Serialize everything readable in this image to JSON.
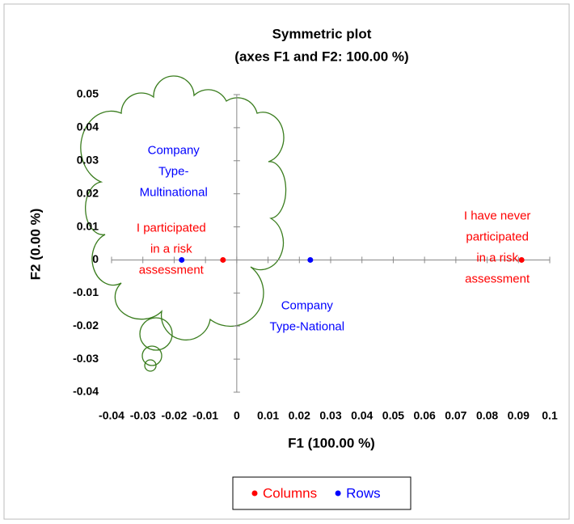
{
  "chart_data": {
    "type": "scatter",
    "title": "Symmetric plot",
    "subtitle": "(axes F1 and F2: 100.00 %)",
    "x_label": "F1 (100.00 %)",
    "y_label": "F2 (0.00 %)",
    "xlim": [
      -0.04,
      0.1
    ],
    "ylim": [
      -0.04,
      0.05
    ],
    "xticks": [
      -0.04,
      -0.03,
      -0.02,
      -0.01,
      0,
      0.01,
      0.02,
      0.03,
      0.04,
      0.05,
      0.06,
      0.07,
      0.08,
      0.09,
      0.1
    ],
    "yticks": [
      0.05,
      0.04,
      0.03,
      0.02,
      0.01,
      0,
      -0.01,
      -0.02,
      -0.03,
      -0.04
    ],
    "series": [
      {
        "name": "Columns",
        "color": "#ff0000",
        "x": [
          -0.0044,
          0.091
        ],
        "values": [
          0,
          0
        ],
        "labels": [
          [
            "I participated",
            "in a risk",
            "assessment"
          ],
          [
            "I have never",
            "participated",
            "in a risk",
            "assessment"
          ]
        ]
      },
      {
        "name": "Rows",
        "color": "#0000ff",
        "x": [
          -0.0176,
          0.0235
        ],
        "values": [
          0,
          0
        ],
        "labels": [
          [
            "Company",
            "Type-",
            "Multinational"
          ],
          [
            "Company",
            "Type-National"
          ]
        ]
      }
    ]
  }
}
